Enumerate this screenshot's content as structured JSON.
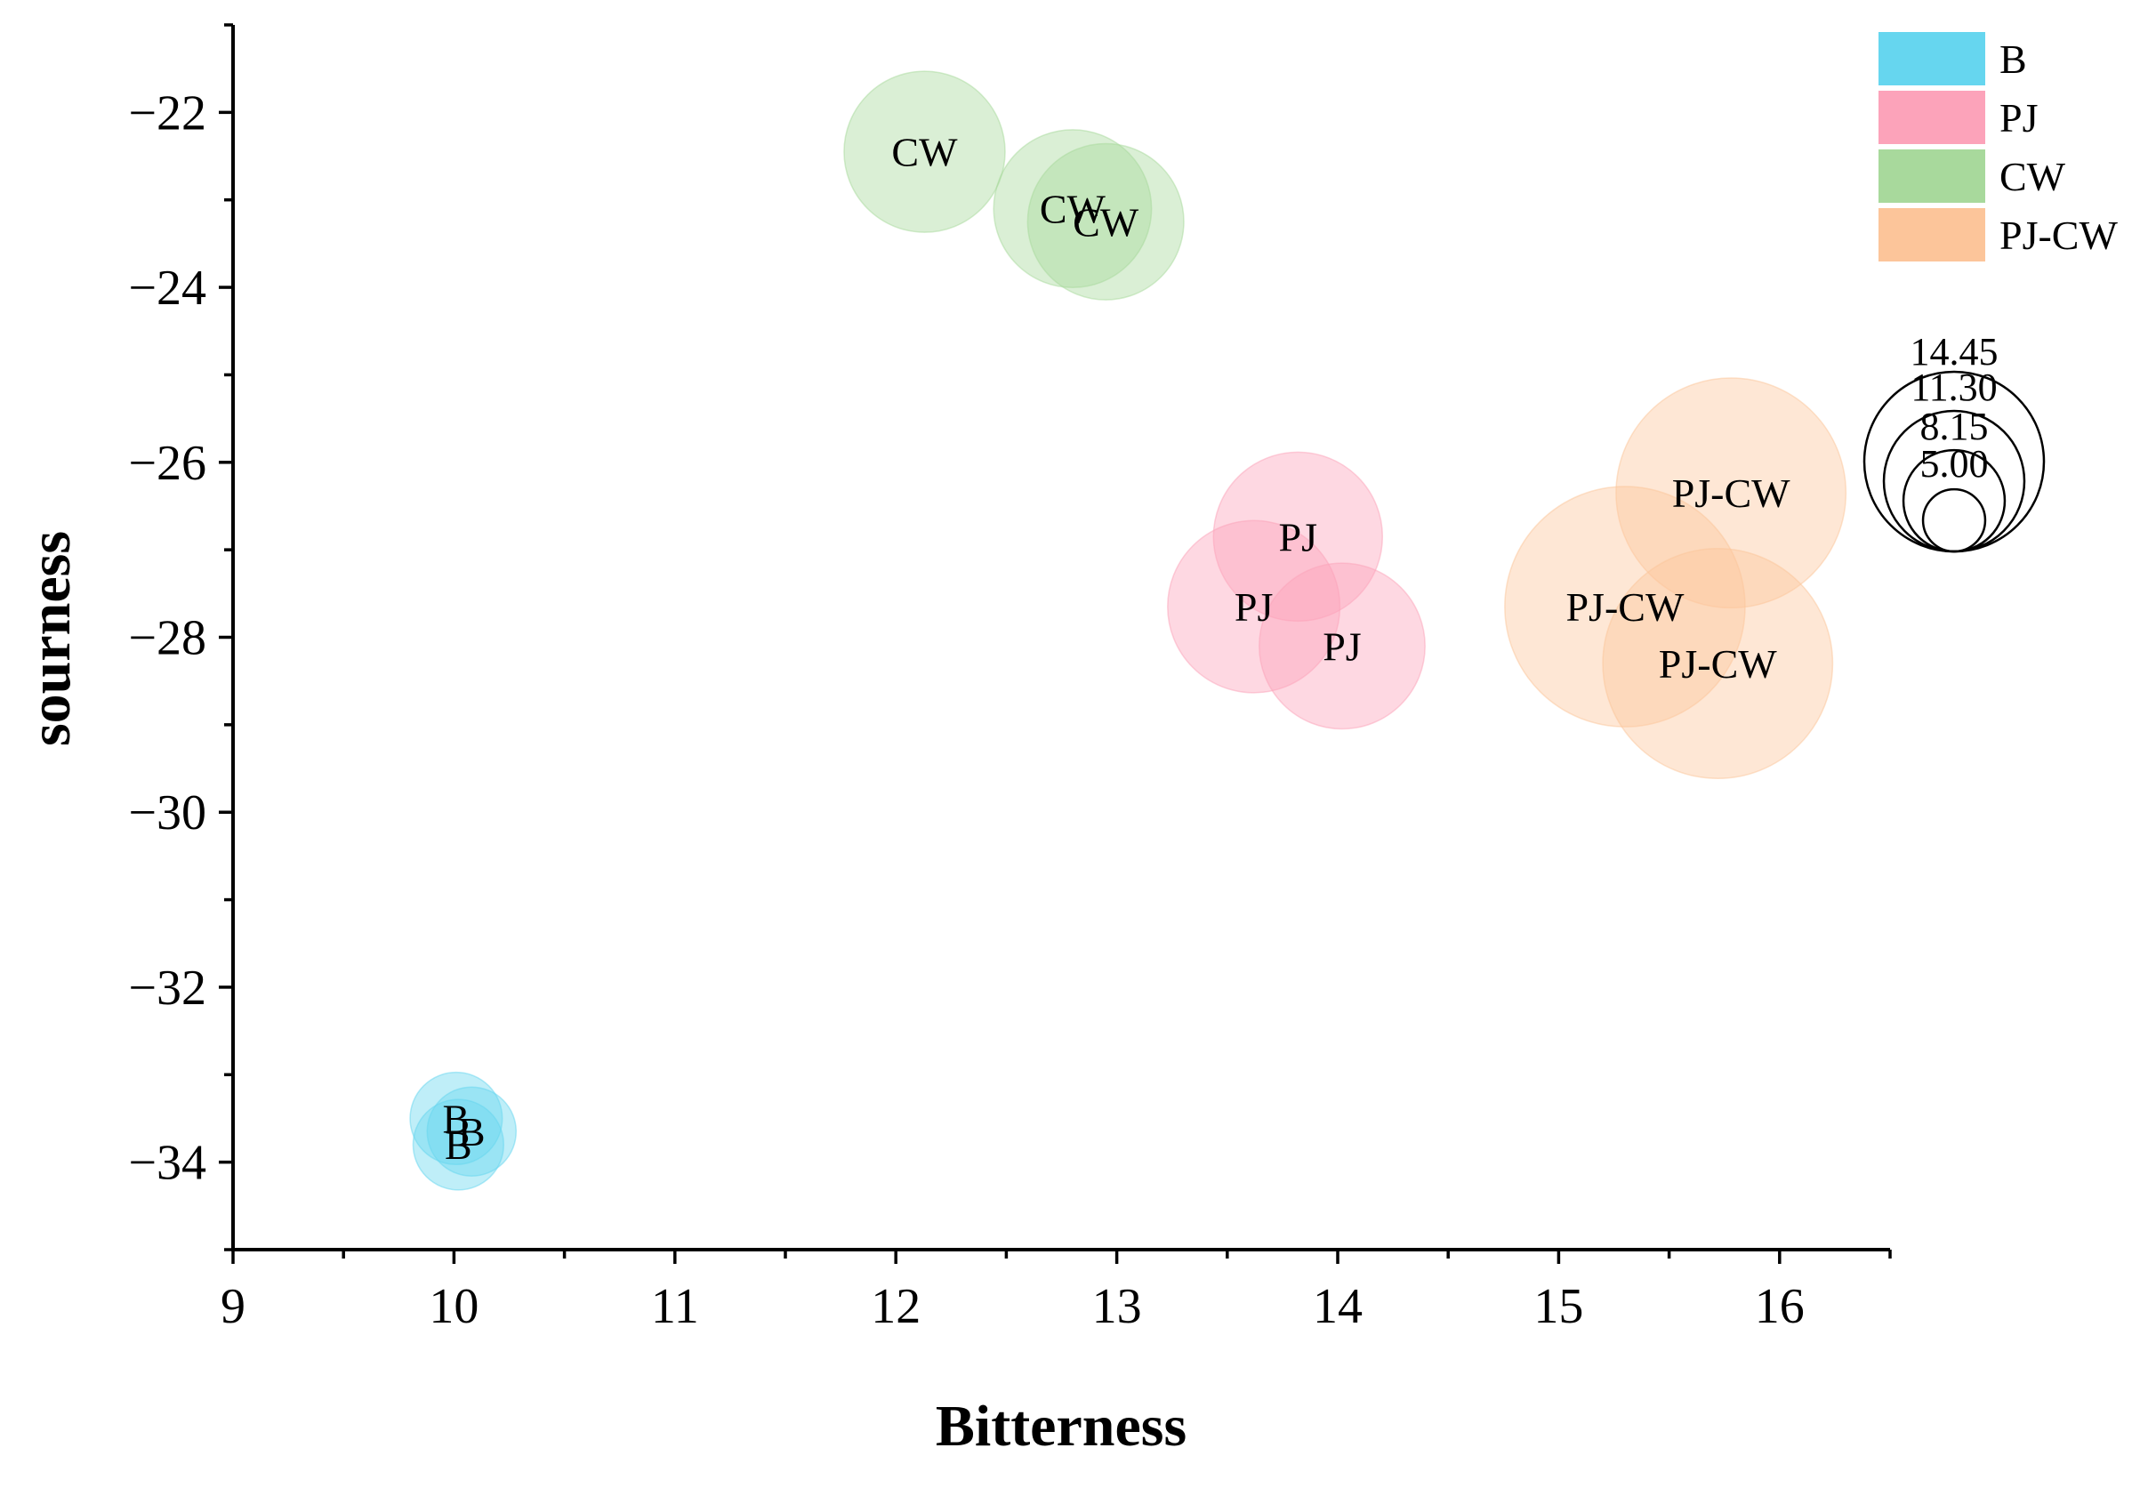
{
  "chart_data": {
    "type": "scatter",
    "subtype": "bubble",
    "xlabel": "Bitterness",
    "ylabel": "sourness",
    "xlim": [
      9,
      16.5
    ],
    "ylim": [
      -35,
      -21
    ],
    "xticks": [
      9,
      10,
      11,
      12,
      13,
      14,
      15,
      16
    ],
    "yticks": [
      -22,
      -24,
      -26,
      -28,
      -30,
      -32,
      -34
    ],
    "xtick_labels": [
      "9",
      "10",
      "11",
      "12",
      "13",
      "14",
      "15",
      "16"
    ],
    "ytick_labels": [
      "−22",
      "−24",
      "−26",
      "−28",
      "−30",
      "−32",
      "−34"
    ],
    "legend_position": "top-right",
    "series": [
      {
        "name": "B",
        "color": "#66d6ef",
        "points": [
          {
            "x": 10.01,
            "y": -33.5,
            "size": 5.2,
            "label": "B"
          },
          {
            "x": 10.08,
            "y": -33.65,
            "size": 5.0,
            "label": "B"
          },
          {
            "x": 10.02,
            "y": -33.8,
            "size": 5.1,
            "label": "B"
          }
        ]
      },
      {
        "name": "PJ",
        "color": "#fca3ba",
        "points": [
          {
            "x": 13.82,
            "y": -26.85,
            "size": 10.0,
            "label": "PJ"
          },
          {
            "x": 13.62,
            "y": -27.65,
            "size": 10.2,
            "label": "PJ"
          },
          {
            "x": 14.02,
            "y": -28.1,
            "size": 9.8,
            "label": "PJ"
          }
        ]
      },
      {
        "name": "CW",
        "color": "#a8d99c",
        "points": [
          {
            "x": 12.13,
            "y": -22.45,
            "size": 9.5,
            "label": "CW"
          },
          {
            "x": 12.8,
            "y": -23.1,
            "size": 9.3,
            "label": "CW"
          },
          {
            "x": 12.95,
            "y": -23.25,
            "size": 9.2,
            "label": "CW"
          }
        ]
      },
      {
        "name": "PJ-CW",
        "color": "#fcc59a",
        "points": [
          {
            "x": 15.78,
            "y": -26.35,
            "size": 13.8,
            "label": "PJ-CW"
          },
          {
            "x": 15.3,
            "y": -27.65,
            "size": 14.45,
            "label": "PJ-CW"
          },
          {
            "x": 15.72,
            "y": -28.3,
            "size": 13.8,
            "label": "PJ-CW"
          }
        ]
      }
    ],
    "size_legend": {
      "values": [
        14.45,
        11.3,
        8.15,
        5.0
      ],
      "labels": [
        "14.45",
        "11.30",
        "8.15",
        "5.00"
      ]
    }
  }
}
